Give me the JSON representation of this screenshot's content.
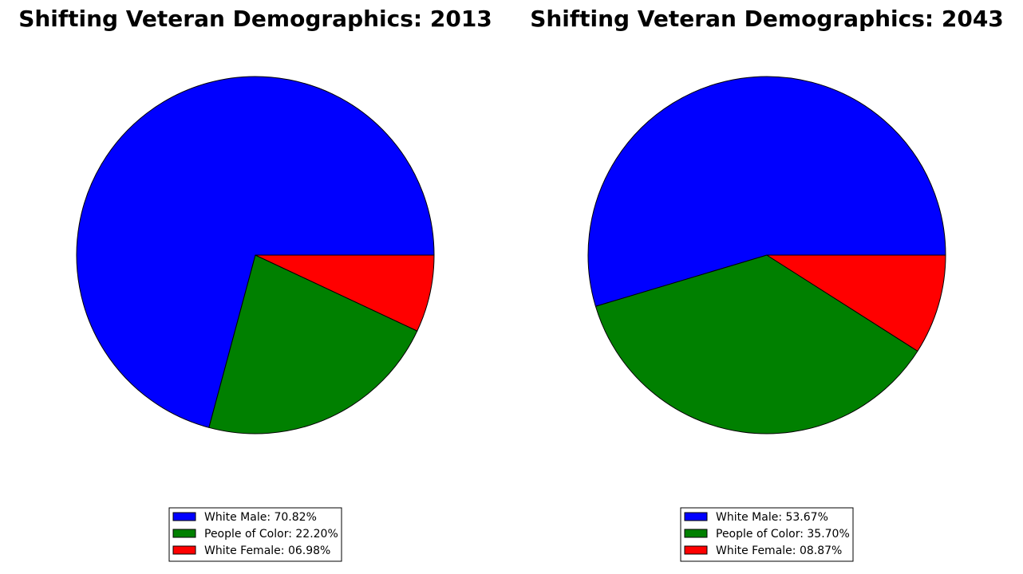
{
  "chart_data": [
    {
      "type": "pie",
      "title": "Shifting Veteran Demographics: 2013",
      "categories": [
        "White Male",
        "People of Color",
        "White Female"
      ],
      "values": [
        70.82,
        22.2,
        6.98
      ],
      "colors": [
        "#0000ff",
        "#008000",
        "#ff0000"
      ],
      "start_angle_deg": 0,
      "direction": "counterclockwise",
      "legend": {
        "position": "bottom-center",
        "entries": [
          "White Male: 70.82%",
          "People of Color: 22.20%",
          "White Female: 06.98%"
        ]
      }
    },
    {
      "type": "pie",
      "title": "Shifting Veteran Demographics: 2043",
      "categories": [
        "White Male",
        "People of Color",
        "White Female"
      ],
      "values": [
        53.67,
        35.7,
        8.87
      ],
      "colors": [
        "#0000ff",
        "#008000",
        "#ff0000"
      ],
      "start_angle_deg": 0,
      "direction": "counterclockwise",
      "legend": {
        "position": "bottom-center",
        "entries": [
          "White Male: 53.67%",
          "People of Color: 35.70%",
          "White Female: 08.87%"
        ]
      }
    }
  ]
}
